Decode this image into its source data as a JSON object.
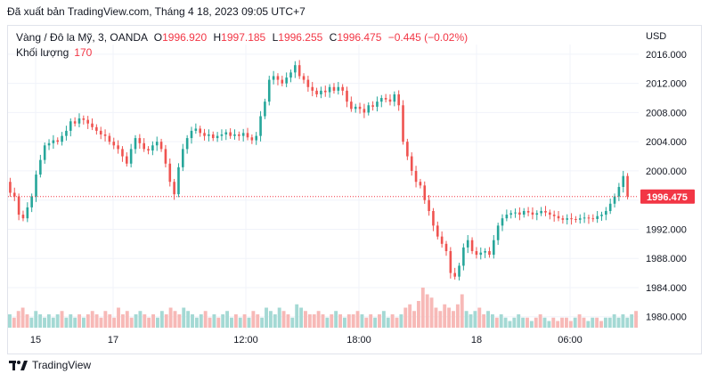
{
  "caption": "Đã xuất bản TradingView.com, Tháng 4 18, 2023 09:05 UTC+7",
  "legend": {
    "symbol": "Vàng / Đô la Mỹ, 3, OANDA",
    "open_label": "O",
    "open": "1996.920",
    "high_label": "H",
    "high": "1997.185",
    "low_label": "L",
    "low": "1996.255",
    "close_label": "C",
    "close": "1996.475",
    "change": "−0.445 (−0.02%)",
    "volume_label": "Khối lượng",
    "volume": "170"
  },
  "currency": "USD",
  "brand": "TradingView",
  "colors": {
    "up": "#26a69a",
    "down": "#ef5350",
    "last_price": "#f23645",
    "grid": "#f0f3fa"
  },
  "chart_data": {
    "type": "candlestick",
    "interval": "3",
    "y_ticks": [
      "1980.000",
      "1984.000",
      "1988.000",
      "1992.000",
      "1996.000",
      "2000.000",
      "2004.000",
      "2008.000",
      "2012.000",
      "2016.000"
    ],
    "y_range": [
      1978.5,
      2016.6
    ],
    "x_ticks": [
      "15",
      "17",
      "12:00",
      "18:00",
      "18",
      "06:00"
    ],
    "last_price_label": "1996.475",
    "last_price": 1996.475,
    "price_path": [
      [
        0,
        1998.5
      ],
      [
        1,
        1997.0
      ],
      [
        2,
        1996.5
      ],
      [
        3,
        1994.0
      ],
      [
        4,
        1993.5
      ],
      [
        5,
        1995.0
      ],
      [
        6,
        1996.5
      ],
      [
        7,
        1999.5
      ],
      [
        8,
        2001.5
      ],
      [
        9,
        2003.5
      ],
      [
        10,
        2003.8
      ],
      [
        11,
        2004.2
      ],
      [
        12,
        2004.0
      ],
      [
        13,
        2004.8
      ],
      [
        14,
        2005.5
      ],
      [
        15,
        2006.8
      ],
      [
        16,
        2006.5
      ],
      [
        17,
        2007.2
      ],
      [
        18,
        2007.0
      ],
      [
        19,
        2006.5
      ],
      [
        20,
        2006.0
      ],
      [
        21,
        2005.5
      ],
      [
        22,
        2005.0
      ],
      [
        23,
        2004.8
      ],
      [
        24,
        2004.0
      ],
      [
        25,
        2003.5
      ],
      [
        26,
        2003.0
      ],
      [
        27,
        2002.0
      ],
      [
        28,
        2001.0
      ],
      [
        29,
        2003.0
      ],
      [
        30,
        2004.5
      ],
      [
        31,
        2003.8
      ],
      [
        32,
        2003.0
      ],
      [
        33,
        2002.8
      ],
      [
        34,
        2003.5
      ],
      [
        35,
        2004.0
      ],
      [
        36,
        2003.0
      ],
      [
        37,
        2001.0
      ],
      [
        38,
        1998.5
      ],
      [
        39,
        1996.8
      ],
      [
        40,
        2000.5
      ],
      [
        41,
        2003.0
      ],
      [
        42,
        2004.5
      ],
      [
        43,
        2005.5
      ],
      [
        44,
        2005.8
      ],
      [
        45,
        2005.2
      ],
      [
        46,
        2004.8
      ],
      [
        47,
        2005.0
      ],
      [
        48,
        2004.5
      ],
      [
        49,
        2004.8
      ],
      [
        50,
        2005.0
      ],
      [
        51,
        2005.3
      ],
      [
        52,
        2004.8
      ],
      [
        53,
        2005.0
      ],
      [
        54,
        2004.8
      ],
      [
        55,
        2005.2
      ],
      [
        56,
        2004.6
      ],
      [
        57,
        2004.2
      ],
      [
        58,
        2004.8
      ],
      [
        59,
        2007.5
      ],
      [
        60,
        2009.5
      ],
      [
        61,
        2012.5
      ],
      [
        62,
        2013.0
      ],
      [
        63,
        2012.5
      ],
      [
        64,
        2012.0
      ],
      [
        65,
        2012.8
      ],
      [
        66,
        2013.5
      ],
      [
        67,
        2014.5
      ],
      [
        68,
        2013.0
      ],
      [
        69,
        2012.5
      ],
      [
        70,
        2011.5
      ],
      [
        71,
        2011.0
      ],
      [
        72,
        2010.5
      ],
      [
        73,
        2011.0
      ],
      [
        74,
        2010.8
      ],
      [
        75,
        2011.5
      ],
      [
        76,
        2011.0
      ],
      [
        77,
        2011.5
      ],
      [
        78,
        2011.0
      ],
      [
        79,
        2009.5
      ],
      [
        80,
        2008.5
      ],
      [
        81,
        2008.8
      ],
      [
        82,
        2008.5
      ],
      [
        83,
        2008.0
      ],
      [
        84,
        2009.0
      ],
      [
        85,
        2008.8
      ],
      [
        86,
        2009.5
      ],
      [
        87,
        2010.0
      ],
      [
        88,
        2009.8
      ],
      [
        89,
        2009.5
      ],
      [
        90,
        2010.5
      ],
      [
        91,
        2009.0
      ],
      [
        92,
        2004.0
      ],
      [
        93,
        2002.0
      ],
      [
        94,
        2000.0
      ],
      [
        95,
        1998.5
      ],
      [
        96,
        1998.0
      ],
      [
        97,
        1996.0
      ],
      [
        98,
        1994.5
      ],
      [
        99,
        1992.5
      ],
      [
        100,
        1991.0
      ],
      [
        101,
        1990.0
      ],
      [
        102,
        1989.0
      ],
      [
        103,
        1986.0
      ],
      [
        104,
        1985.5
      ],
      [
        105,
        1987.0
      ],
      [
        106,
        1989.5
      ],
      [
        107,
        1990.5
      ],
      [
        108,
        1989.0
      ],
      [
        109,
        1988.5
      ],
      [
        110,
        1988.8
      ],
      [
        111,
        1989.0
      ],
      [
        112,
        1988.5
      ],
      [
        113,
        1990.5
      ],
      [
        114,
        1992.5
      ],
      [
        115,
        1993.5
      ],
      [
        116,
        1994.0
      ],
      [
        117,
        1994.2
      ],
      [
        118,
        1994.3
      ],
      [
        119,
        1994.0
      ],
      [
        120,
        1994.5
      ],
      [
        121,
        1994.3
      ],
      [
        122,
        1994.0
      ],
      [
        123,
        1994.2
      ],
      [
        124,
        1994.5
      ],
      [
        125,
        1994.3
      ],
      [
        126,
        1994.0
      ],
      [
        127,
        1993.8
      ],
      [
        128,
        1993.5
      ],
      [
        129,
        1993.3
      ],
      [
        130,
        1993.5
      ],
      [
        131,
        1993.4
      ],
      [
        132,
        1993.3
      ],
      [
        133,
        1993.5
      ],
      [
        134,
        1993.6
      ],
      [
        135,
        1993.5
      ],
      [
        136,
        1993.4
      ],
      [
        137,
        1993.8
      ],
      [
        138,
        1994.0
      ],
      [
        139,
        1994.5
      ],
      [
        140,
        1995.5
      ],
      [
        141,
        1996.5
      ],
      [
        142,
        1997.8
      ],
      [
        143,
        1999.3
      ],
      [
        144,
        1996.5
      ]
    ],
    "volume": [
      4,
      3,
      5,
      6,
      4,
      3,
      5,
      4,
      3,
      4,
      3,
      4,
      5,
      3,
      4,
      3,
      4,
      3,
      4,
      5,
      4,
      3,
      5,
      4,
      3,
      6,
      4,
      5,
      3,
      4,
      5,
      4,
      3,
      4,
      3,
      5,
      4,
      6,
      5,
      4,
      6,
      5,
      4,
      3,
      4,
      5,
      3,
      4,
      3,
      4,
      5,
      3,
      4,
      3,
      4,
      3,
      5,
      4,
      3,
      6,
      5,
      4,
      6,
      5,
      4,
      3,
      7,
      6,
      5,
      4,
      4,
      5,
      4,
      3,
      4,
      5,
      4,
      3,
      4,
      4,
      5,
      4,
      3,
      4,
      3,
      4,
      5,
      3,
      4,
      3,
      4,
      6,
      7,
      5,
      8,
      12,
      10,
      9,
      6,
      5,
      7,
      6,
      5,
      7,
      10,
      5,
      4,
      5,
      6,
      4,
      5,
      4,
      3,
      4,
      3,
      2,
      3,
      4,
      3,
      3,
      2,
      3,
      4,
      3,
      2,
      3,
      2,
      3,
      3,
      2,
      3,
      4,
      3,
      2,
      3,
      3,
      2,
      3,
      3,
      4,
      3,
      4,
      3,
      4,
      5
    ]
  }
}
